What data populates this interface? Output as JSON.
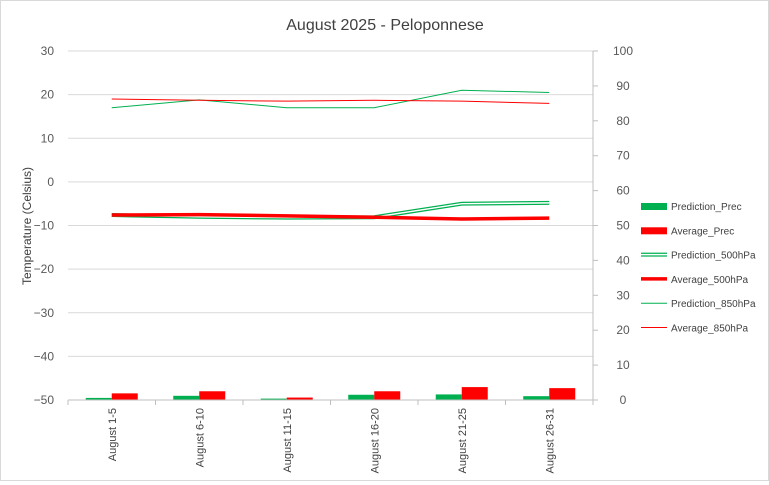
{
  "chart_data": {
    "type": "bar+line",
    "title": "August 2025 - Peloponnese",
    "ylabel": "Temperature  (Celsius)",
    "y2label": "",
    "categories": [
      "August 1-5",
      "August 6-10",
      "August 11-15",
      "August 16-20",
      "August 21-25",
      "August 26-31"
    ],
    "ylim": [
      -50,
      30
    ],
    "y_ticks": [
      30,
      20,
      10,
      0,
      -10,
      -20,
      -30,
      -40,
      -50
    ],
    "y2lim": [
      0,
      100
    ],
    "y2_ticks": [
      100,
      90,
      80,
      70,
      60,
      50,
      40,
      30,
      20,
      10,
      0
    ],
    "grid": "horizontal",
    "legend_position": "right",
    "series": [
      {
        "name": "Prediction_Prec",
        "type": "bar",
        "axis": "secondary",
        "color": "#00b050",
        "values": [
          0.6,
          1.2,
          0.4,
          1.5,
          1.6,
          1.1
        ]
      },
      {
        "name": "Average_Prec",
        "type": "bar",
        "axis": "secondary",
        "color": "#ff0000",
        "values": [
          1.9,
          2.5,
          0.7,
          2.5,
          3.7,
          3.4
        ]
      },
      {
        "name": "Prediction_500hPa",
        "type": "line",
        "style": "double",
        "axis": "primary",
        "color": "#00b050",
        "values": [
          -7.6,
          -8.0,
          -8.2,
          -8.1,
          -5.0,
          -4.8
        ]
      },
      {
        "name": "Average_500hPa",
        "type": "line",
        "style": "thick",
        "axis": "primary",
        "color": "#ff0000",
        "values": [
          -7.6,
          -7.5,
          -7.8,
          -8.1,
          -8.5,
          -8.3
        ]
      },
      {
        "name": "Prediction_850hPa",
        "type": "line",
        "style": "thin",
        "axis": "primary",
        "color": "#00b050",
        "values": [
          17.0,
          18.8,
          17.0,
          17.0,
          21.0,
          20.5
        ]
      },
      {
        "name": "Average_850hPa",
        "type": "line",
        "style": "thin",
        "axis": "primary",
        "color": "#ff0000",
        "values": [
          19.0,
          18.7,
          18.5,
          18.7,
          18.5,
          18.0
        ]
      }
    ]
  }
}
